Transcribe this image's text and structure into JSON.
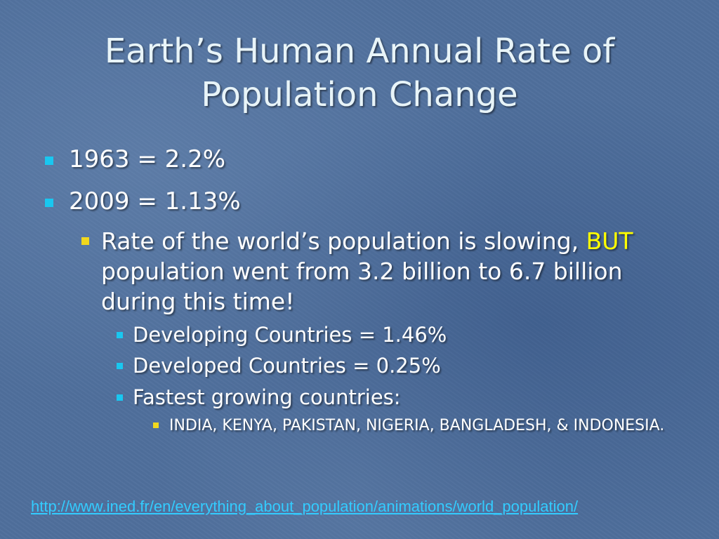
{
  "slide": {
    "title_line1": "Earth’s Human Annual Rate of",
    "title_line2": "Population Change",
    "bullets": [
      {
        "text": "1963 = 2.2%"
      },
      {
        "text": "2009 = 1.13%"
      }
    ],
    "sub_bullet": {
      "text_before": "Rate of the world’s population is slowing, ",
      "highlight": "BUT",
      "text_after": " population went from 3.2 billion to 6.7 billion during this time!"
    },
    "sub_sub_bullets": [
      {
        "text": "Developing Countries = 1.46%"
      },
      {
        "text": "Developed Countries = 0.25%"
      },
      {
        "text": "Fastest growing countries:"
      }
    ],
    "countries_bullet": "INDIA, KENYA, PAKISTAN, NIGERIA, BANGLADESH, & INDONESIA.",
    "link": "http://www.ined.fr/en/everything_about_population/animations/world_population/"
  },
  "colors": {
    "background": "#4f6f9c",
    "title": "#e8f4f8",
    "bullet_cyan": "#19c7f0",
    "bullet_yellow": "#f2d81d",
    "highlight": "#ffff00",
    "link": "#33ccff"
  },
  "icons": {
    "level1_bullet": "square-bullet-icon",
    "level2_bullet": "square-bullet-icon",
    "level3_bullet": "square-bullet-icon",
    "level4_bullet": "square-bullet-icon"
  }
}
